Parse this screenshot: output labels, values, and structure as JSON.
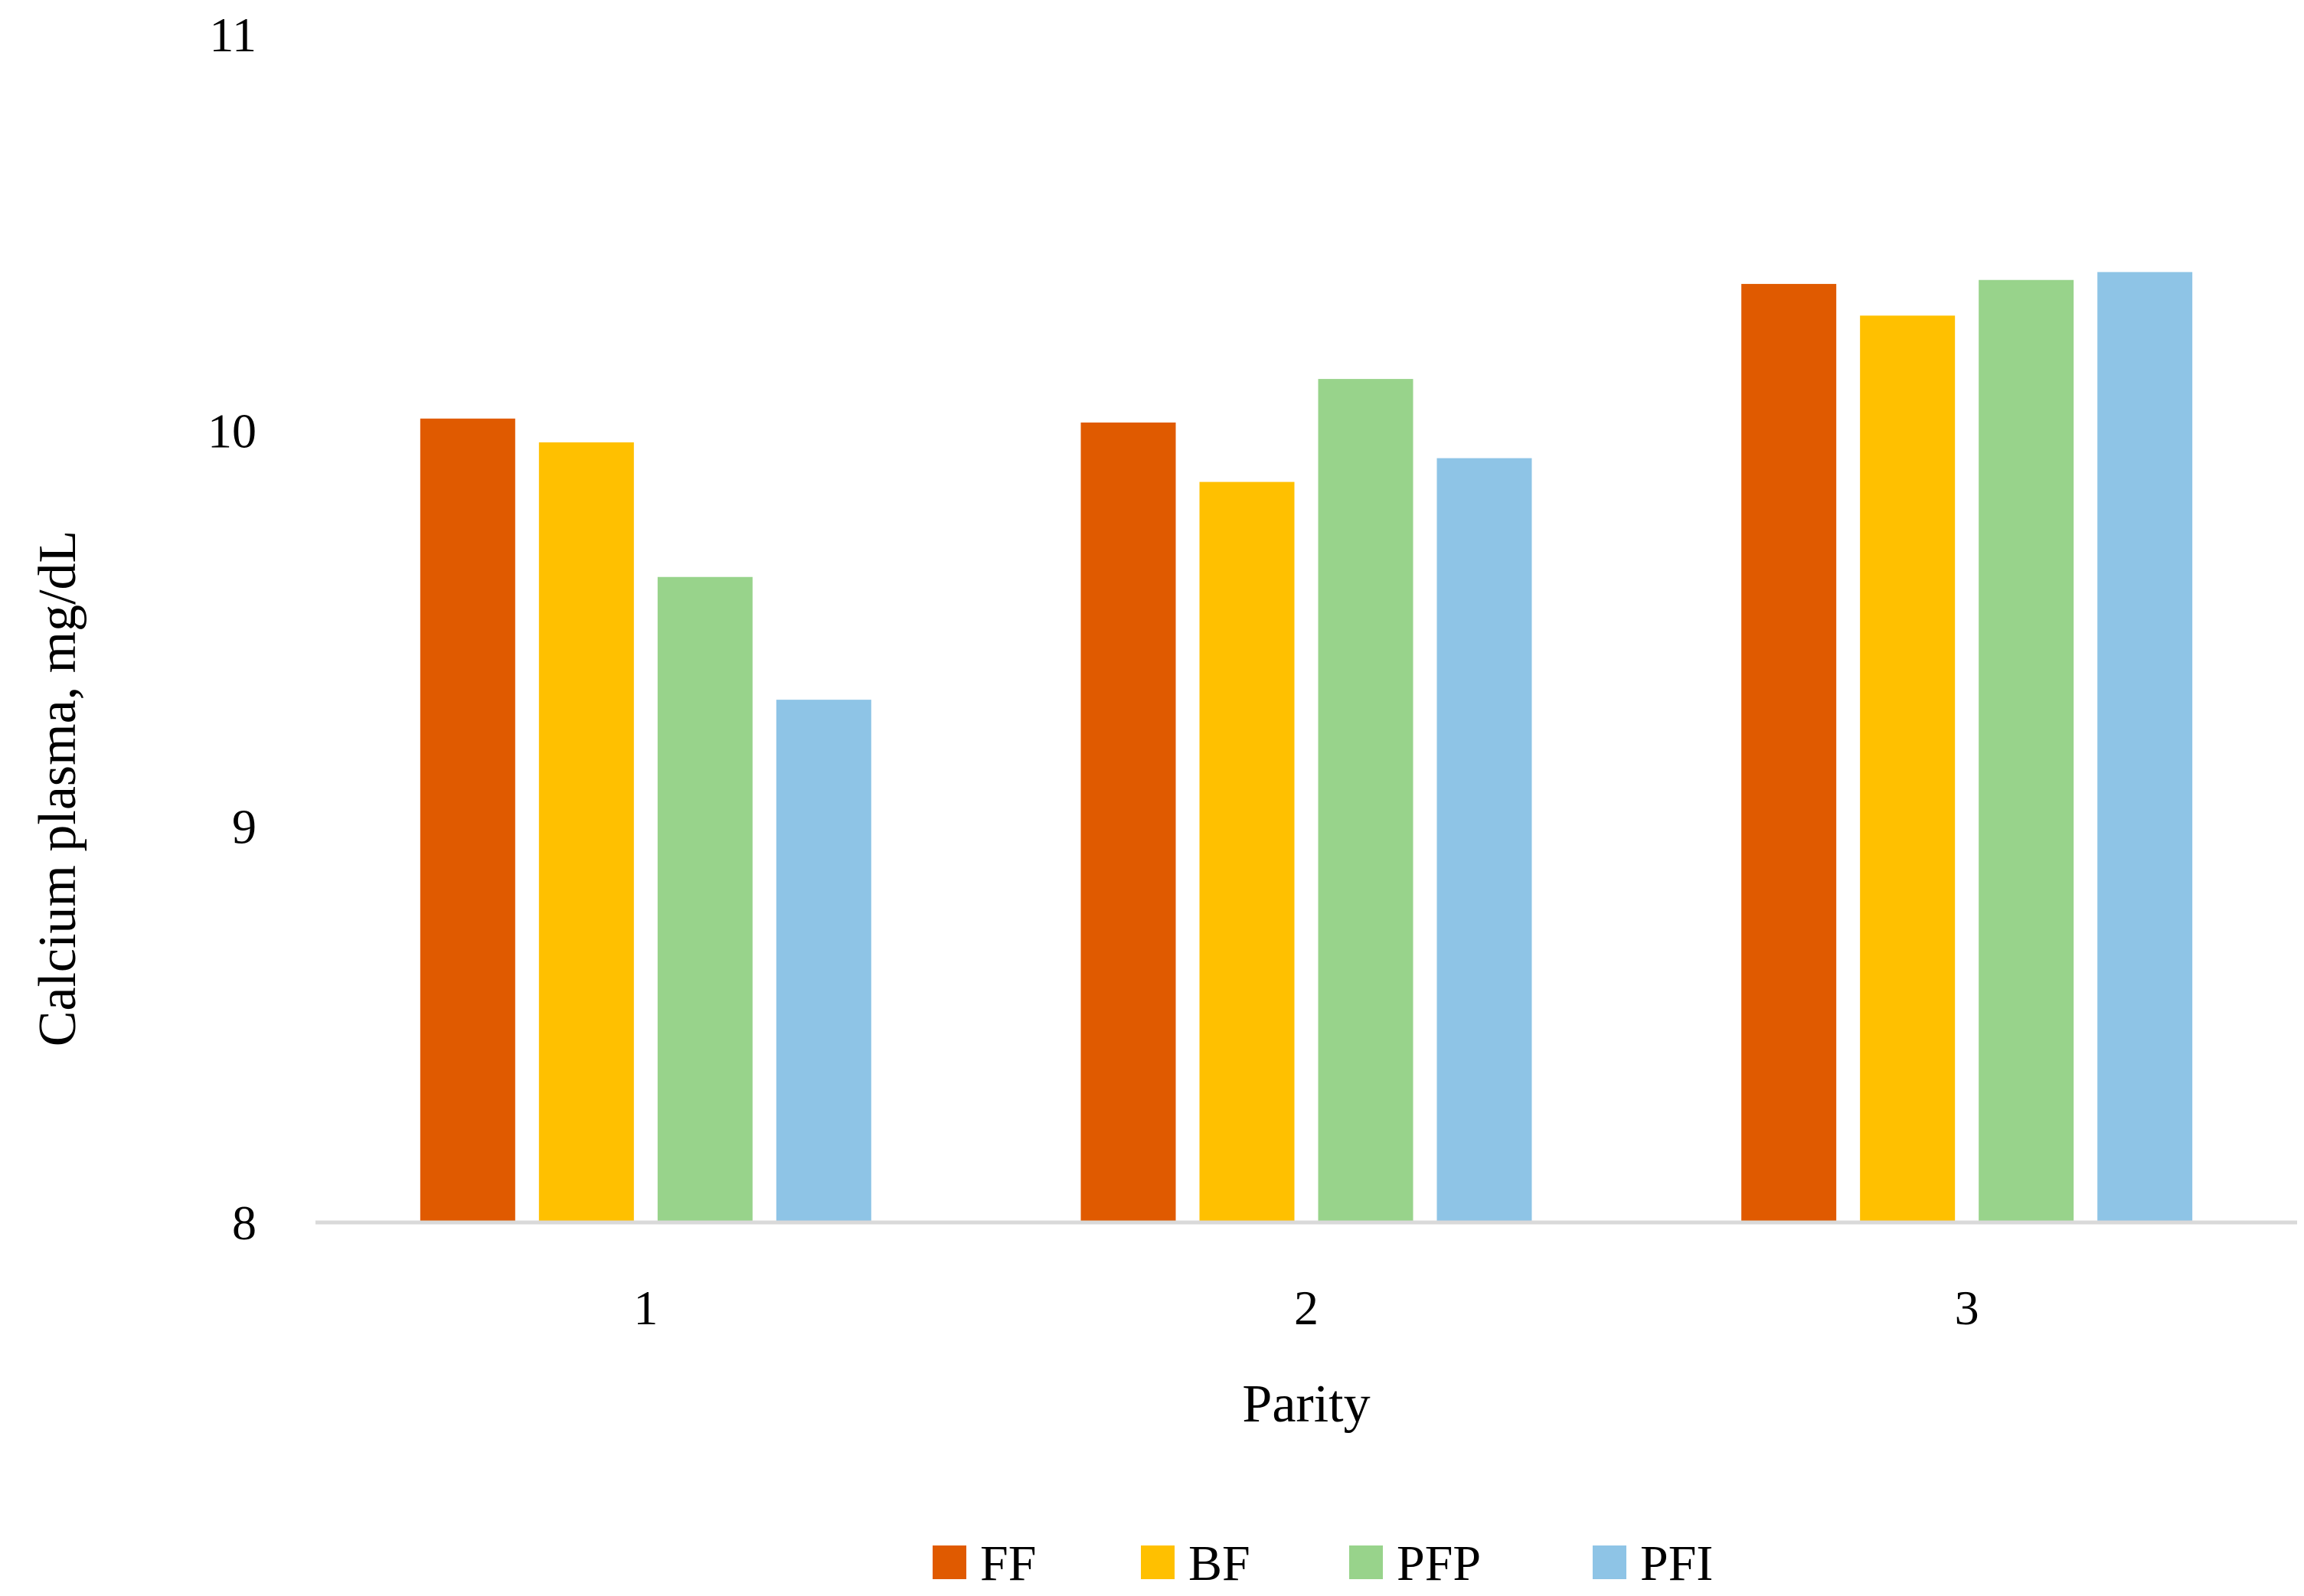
{
  "chart_data": {
    "type": "bar",
    "title": "",
    "xlabel": "Parity",
    "ylabel": "Calcium plasma, mg/dL",
    "categories": [
      "1",
      "2",
      "3"
    ],
    "ylim": [
      8,
      11
    ],
    "yticks": [
      "8",
      "9",
      "10",
      "11"
    ],
    "grid": false,
    "legend_position": "bottom",
    "series": [
      {
        "name": "FF",
        "color": "#E05A00",
        "values": [
          10.03,
          10.02,
          10.37
        ]
      },
      {
        "name": "BF",
        "color": "#FFC000",
        "values": [
          9.97,
          9.87,
          10.29
        ]
      },
      {
        "name": "PFP",
        "color": "#98D38B",
        "values": [
          9.63,
          10.13,
          10.38
        ]
      },
      {
        "name": "PFI",
        "color": "#8EC4E6",
        "values": [
          9.32,
          9.93,
          10.4
        ]
      }
    ]
  }
}
